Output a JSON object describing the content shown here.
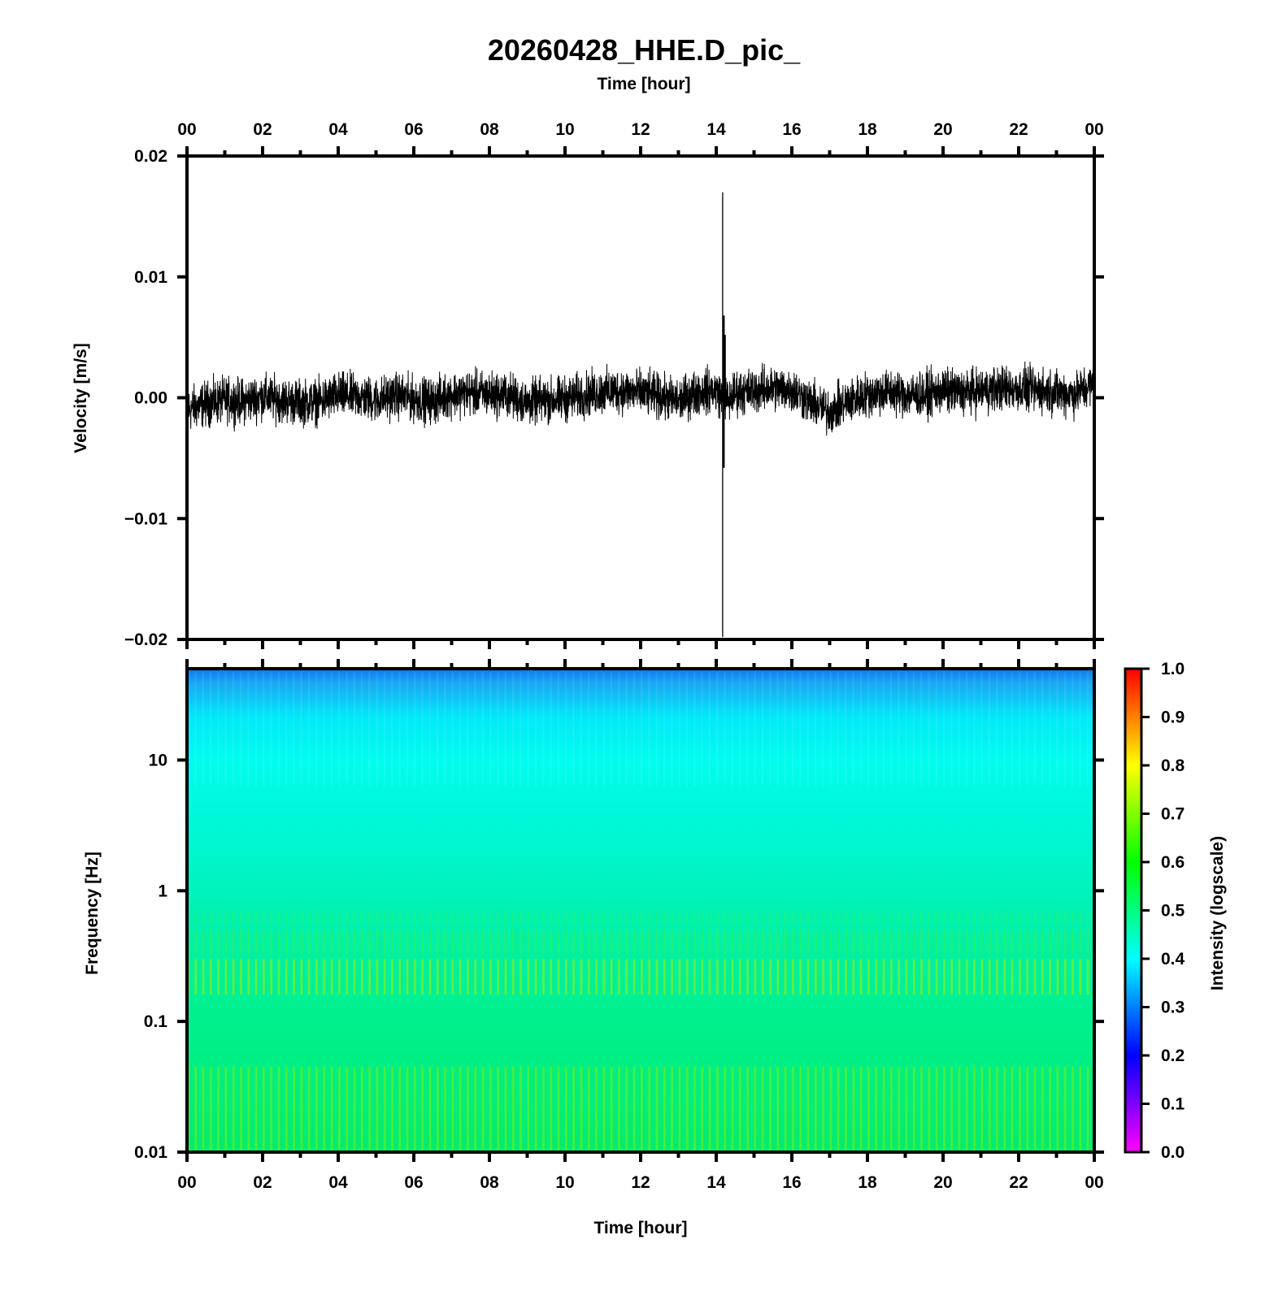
{
  "chart_data": [
    {
      "type": "line",
      "title": "20260428_HHE.D_pic_",
      "xlabel": "Time [hour]",
      "ylabel": "Velocity [m/s]",
      "xlim": [
        0,
        24
      ],
      "ylim": [
        -0.02,
        0.02
      ],
      "x_ticks": [
        "00",
        "02",
        "04",
        "06",
        "08",
        "10",
        "12",
        "14",
        "16",
        "18",
        "20",
        "22",
        "00"
      ],
      "y_ticks": [
        "0.02",
        "0.01",
        "0.00",
        "−0.01",
        "−0.02"
      ],
      "grid": false,
      "series": [
        {
          "color": "#000000",
          "noise_amplitude": 0.001,
          "x": [
            0,
            0.5,
            1,
            1.5,
            2,
            2.5,
            3,
            3.5,
            4,
            4.5,
            5,
            5.5,
            6,
            6.5,
            7,
            7.5,
            8,
            8.5,
            9,
            9.5,
            10,
            10.5,
            11,
            11.5,
            12,
            12.5,
            13,
            13.5,
            14,
            14.1,
            14.17,
            14.2,
            14.25,
            14.3,
            14.5,
            15,
            15.5,
            16,
            16.5,
            17,
            17.5,
            18,
            18.5,
            19,
            19.5,
            20,
            20.5,
            21,
            21.5,
            22,
            22.5,
            23,
            23.5,
            24
          ],
          "y": [
            -0.001,
            -0.0005,
            -0.0002,
            -0.0003,
            0.0001,
            -0.0002,
            -0.0004,
            -0.0003,
            0.0002,
            0.0001,
            -0.0002,
            0.0002,
            -0.0001,
            -0.0003,
            0.0003,
            0.0004,
            0.0003,
            0.0002,
            -0.0004,
            -0.0002,
            -0.0001,
            0.0002,
            0.0005,
            0.0006,
            0.0004,
            0.0001,
            -0.0003,
            0.0005,
            0.0006,
            0.0002,
            0.0,
            0.0002,
            0.0001,
            -0.0003,
            0.0004,
            0.0006,
            0.0008,
            0.0007,
            -0.0004,
            -0.0012,
            -0.0003,
            0.0003,
            0.0005,
            0.0003,
            0.0002,
            0.0006,
            0.0004,
            0.0006,
            0.0008,
            0.0007,
            0.0006,
            0.0005,
            0.0003,
            0.0012
          ]
        }
      ],
      "spikes": [
        {
          "x": 14.17,
          "y_max": 0.017,
          "y_min": -0.0198
        },
        {
          "x": 14.2,
          "y_max": 0.0068,
          "y_min": -0.0058
        },
        {
          "x": 14.23,
          "y_max": 0.0052,
          "y_min": -0.001
        }
      ]
    },
    {
      "type": "heatmap",
      "xlabel": "Time [hour]",
      "ylabel": "Frequency [Hz]",
      "xlim": [
        0,
        24
      ],
      "ylim": [
        0.01,
        50
      ],
      "y_scale": "log",
      "x_ticks": [
        "00",
        "02",
        "04",
        "06",
        "08",
        "10",
        "12",
        "14",
        "16",
        "18",
        "20",
        "22",
        "00"
      ],
      "y_ticks": [
        "10",
        "1",
        "0.1",
        "0.01"
      ],
      "intensity_profile": {
        "frequency": [
          50,
          30,
          20,
          10,
          3,
          1,
          0.6,
          0.4,
          0.22,
          0.12,
          0.05,
          0.02,
          0.01
        ],
        "intensity": [
          0.31,
          0.37,
          0.39,
          0.42,
          0.44,
          0.46,
          0.5,
          0.52,
          0.57,
          0.54,
          0.56,
          0.6,
          0.62
        ]
      },
      "colorbar": {
        "label": "Intensity (logscale)",
        "ticks": [
          "1.0",
          "0.9",
          "0.8",
          "0.7",
          "0.6",
          "0.5",
          "0.4",
          "0.3",
          "0.2",
          "0.1",
          "0.0"
        ],
        "range": [
          0,
          1
        ],
        "colors": [
          "#ff00ff",
          "#0000ff",
          "#00ffff",
          "#00ff00",
          "#ffff00",
          "#ff0000"
        ]
      }
    }
  ]
}
